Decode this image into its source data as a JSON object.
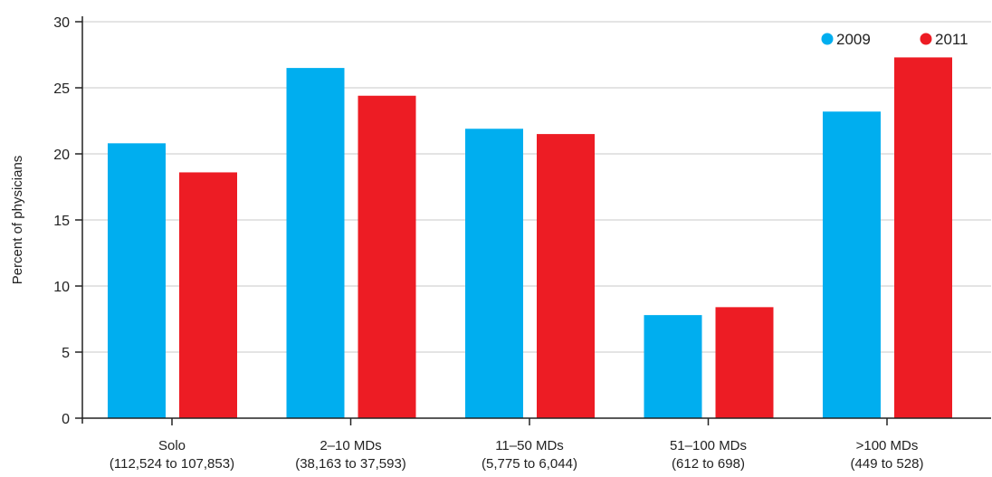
{
  "chart_data": {
    "type": "bar",
    "title": "",
    "xlabel": "",
    "ylabel": "Percent of physicians",
    "ylim": [
      0,
      30
    ],
    "yticks": [
      0,
      5,
      10,
      15,
      20,
      25,
      30
    ],
    "grid": true,
    "legend_position": "top-right",
    "categories": [
      {
        "name": "Solo",
        "sub": "(112,524 to 107,853)"
      },
      {
        "name": "2–10 MDs",
        "sub": "(38,163 to 37,593)"
      },
      {
        "name": "11–50 MDs",
        "sub": "(5,775 to 6,044)"
      },
      {
        "name": "51–100 MDs",
        "sub": "(612 to 698)"
      },
      {
        "name": ">100 MDs",
        "sub": "(449 to 528)"
      }
    ],
    "series": [
      {
        "name": "2009",
        "color": "#00aeef",
        "values": [
          20.8,
          26.5,
          21.9,
          7.8,
          23.2
        ]
      },
      {
        "name": "2011",
        "color": "#ed1c24",
        "values": [
          18.6,
          24.4,
          21.5,
          8.4,
          27.3
        ]
      }
    ]
  }
}
